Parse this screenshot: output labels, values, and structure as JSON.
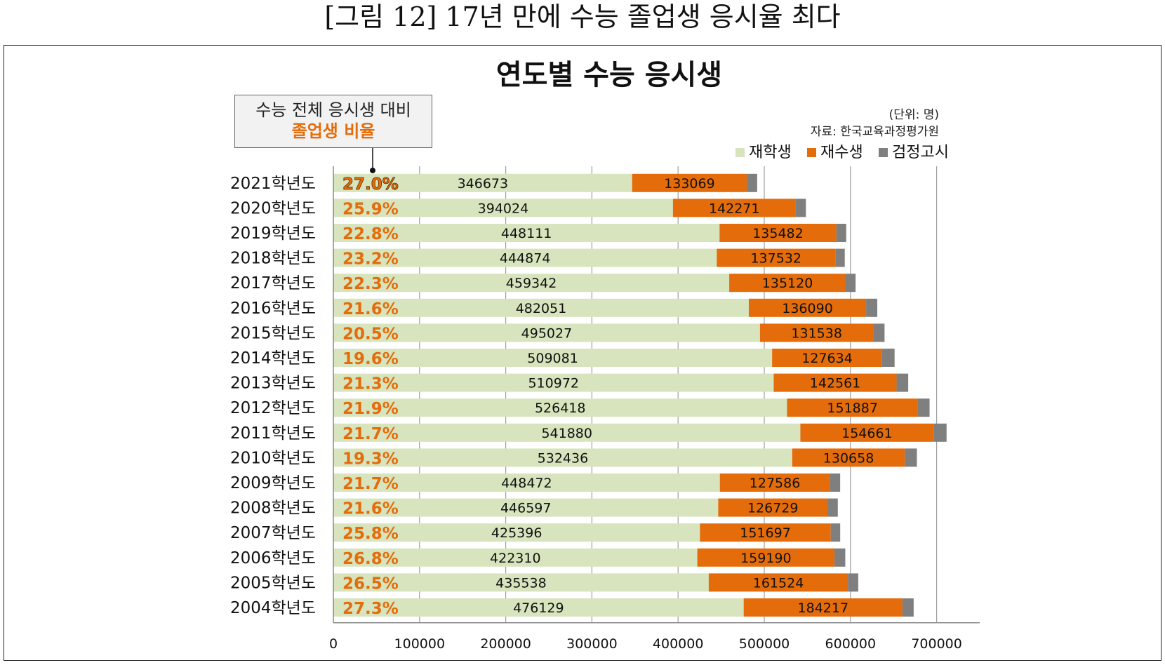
{
  "figure_caption": "[그림 12] 17년 만에 수능 졸업생 응시율 최다",
  "callout": {
    "line1": "수능 전체 응시생 대비",
    "line2": "졸업생 비율"
  },
  "unit_note": "(단위: 명)",
  "source_note": "자료: 한국교육과정평가원",
  "colors": {
    "enrolled": "#d7e4bd",
    "repeat": "#e46c0a",
    "ged": "#7f7f7f",
    "ratio_text": "#e46c0a",
    "grid": "#9e9e9e"
  },
  "chart_data": {
    "type": "bar",
    "orientation": "horizontal",
    "stacked": true,
    "title": "연도별 수능 응시생",
    "categories": [
      "2021학년도",
      "2020학년도",
      "2019학년도",
      "2018학년도",
      "2017학년도",
      "2016학년도",
      "2015학년도",
      "2014학년도",
      "2013학년도",
      "2012학년도",
      "2011학년도",
      "2010학년도",
      "2009학년도",
      "2008학년도",
      "2007학년도",
      "2006학년도",
      "2005학년도",
      "2004학년도"
    ],
    "series": [
      {
        "name": "재학생",
        "values": [
          346673,
          394024,
          448111,
          444874,
          459342,
          482051,
          495027,
          509081,
          510972,
          526418,
          541880,
          532436,
          448472,
          446597,
          425396,
          422310,
          435538,
          476129
        ]
      },
      {
        "name": "재수생",
        "values": [
          133069,
          142271,
          135482,
          137532,
          135120,
          136090,
          131538,
          127634,
          142561,
          151887,
          154661,
          130658,
          127586,
          126729,
          151697,
          159190,
          161524,
          184217
        ]
      },
      {
        "name": "검정고시",
        "values": [
          12000,
          12000,
          11500,
          11000,
          11500,
          13000,
          13000,
          14500,
          13500,
          13500,
          15000,
          14000,
          12000,
          12000,
          11000,
          12500,
          12000,
          13000
        ]
      }
    ],
    "graduate_ratio_labels": [
      "27.0%",
      "25.9%",
      "22.8%",
      "23.2%",
      "22.3%",
      "21.6%",
      "20.5%",
      "19.6%",
      "21.3%",
      "21.9%",
      "21.7%",
      "19.3%",
      "21.7%",
      "21.6%",
      "25.8%",
      "26.8%",
      "26.5%",
      "27.3%"
    ],
    "xlim": [
      0,
      750000
    ],
    "xticks": [
      0,
      100000,
      200000,
      300000,
      400000,
      500000,
      600000,
      700000
    ],
    "xtick_labels": [
      "0",
      "100000",
      "200000",
      "300000",
      "400000",
      "500000",
      "600000",
      "700000"
    ],
    "legend_position": "top-right",
    "grid": "vertical"
  }
}
